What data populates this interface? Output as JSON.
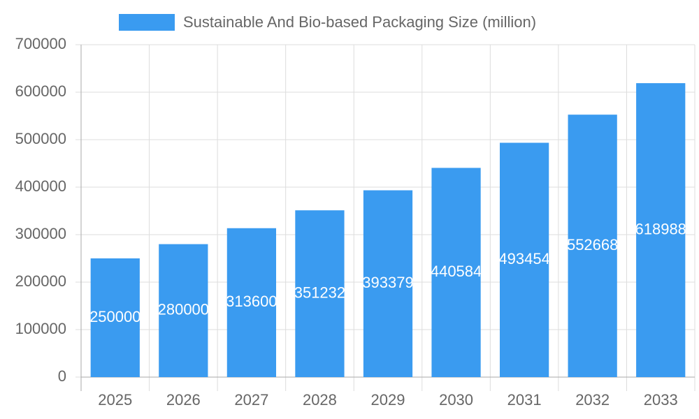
{
  "chart_data": {
    "type": "bar",
    "categories": [
      "2025",
      "2026",
      "2027",
      "2028",
      "2029",
      "2030",
      "2031",
      "2032",
      "2033"
    ],
    "series": [
      {
        "name": "Sustainable And Bio-based Packaging Size (million)",
        "color": "#3a9bf0",
        "values": [
          250000,
          280000,
          313600,
          351232,
          393379,
          440584,
          493454,
          552668,
          618988
        ]
      }
    ],
    "ylim": [
      0,
      700000
    ],
    "yticks": [
      0,
      100000,
      200000,
      300000,
      400000,
      500000,
      600000,
      700000
    ],
    "grid": true,
    "legend": "top"
  }
}
